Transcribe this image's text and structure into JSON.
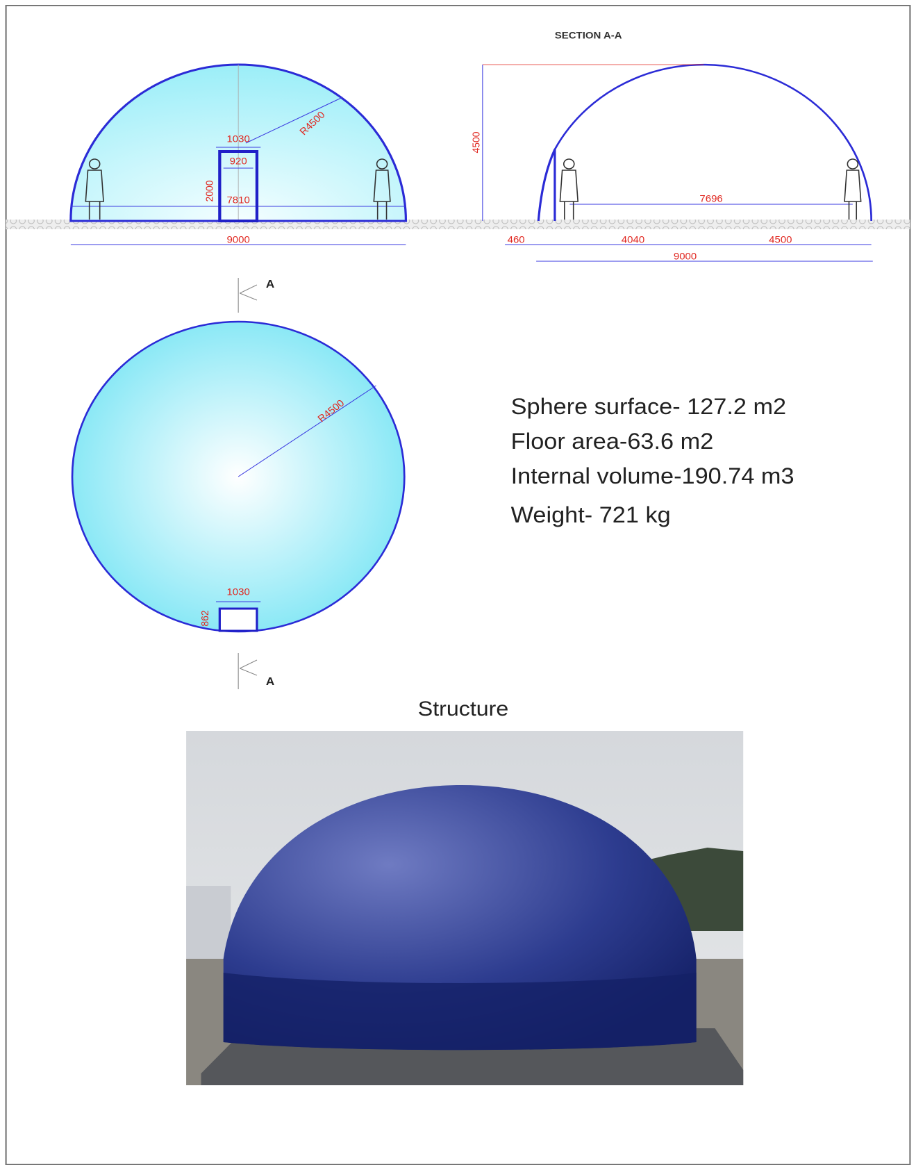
{
  "front_view": {
    "labels": {
      "door_width": "1030",
      "door_opening": "920",
      "door_height": "2000",
      "floor_width": "7810",
      "radius": "R4500",
      "base_width": "9000"
    }
  },
  "section": {
    "title": "SECTION A-A",
    "labels": {
      "height": "4500",
      "floor_width": "7696",
      "entry_depth": "460",
      "left_span": "4040",
      "right_span": "4500",
      "total_width": "9000"
    }
  },
  "plan_view": {
    "labels": {
      "radius": "R4500",
      "door_width": "1030",
      "door_depth": "862",
      "cut_top": "A",
      "cut_bottom": "A"
    }
  },
  "specs": [
    "Sphere surface- 127.2 m2",
    "Floor area-63.6 m2",
    "Internal volume-190.74 m3",
    "Weight- 721 kg"
  ],
  "photo": {
    "caption": "Structure"
  }
}
